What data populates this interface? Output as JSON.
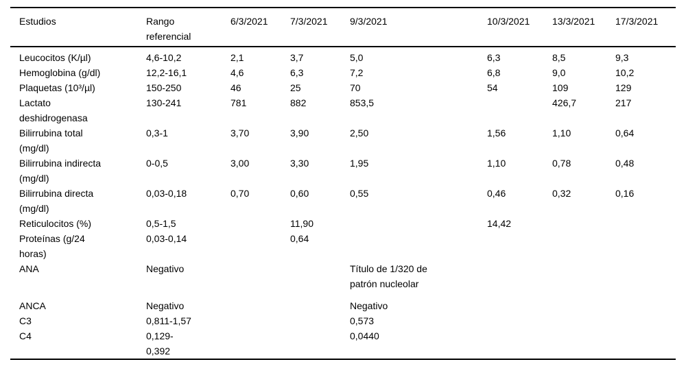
{
  "page": {
    "background_color": "#ffffff",
    "text_color": "#000000",
    "rule_color": "#000000"
  },
  "table": {
    "columns": [
      "Estudios",
      "Rango\nreferencial",
      "6/3/2021",
      "7/3/2021",
      "9/3/2021",
      "10/3/2021",
      "13/3/2021",
      "17/3/2021"
    ],
    "rows": [
      {
        "cells": [
          "Leucocitos (K/µl)",
          "4,6-10,2",
          "2,1",
          "3,7",
          "5,0",
          "6,3",
          "8,5",
          "9,3"
        ],
        "spaced": false
      },
      {
        "cells": [
          "Hemoglobina (g/dl)",
          "12,2-16,1",
          "4,6",
          "6,3",
          "7,2",
          "6,8",
          "9,0",
          "10,2"
        ],
        "spaced": false
      },
      {
        "cells": [
          "Plaquetas (10³/µl)",
          "150-250",
          "46",
          "25",
          "70",
          "54",
          "109",
          "129"
        ],
        "spaced": false
      },
      {
        "cells": [
          "Lactato\ndeshidrogenasa",
          "130-241",
          "781",
          "882",
          "853,5",
          "",
          "426,7",
          "217"
        ],
        "spaced": false
      },
      {
        "cells": [
          "Bilirrubina total\n(mg/dl)",
          "0,3-1",
          "3,70",
          "3,90",
          "2,50",
          "1,56",
          "1,10",
          "0,64"
        ],
        "spaced": false
      },
      {
        "cells": [
          "Bilirrubina indirecta\n(mg/dl)",
          "0-0,5",
          "3,00",
          "3,30",
          "1,95",
          "1,10",
          "0,78",
          "0,48"
        ],
        "spaced": false
      },
      {
        "cells": [
          "Bilirrubina directa\n(mg/dl)",
          "0,03-0,18",
          "0,70",
          "0,60",
          "0,55",
          "0,46",
          "0,32",
          "0,16"
        ],
        "spaced": false
      },
      {
        "cells": [
          "Reticulocitos (%)",
          "0,5-1,5",
          "",
          "11,90",
          "",
          "14,42",
          "",
          ""
        ],
        "spaced": false
      },
      {
        "cells": [
          "Proteínas (g/24\nhoras)",
          "0,03-0,14",
          "",
          "0,64",
          "",
          "",
          "",
          ""
        ],
        "spaced": false
      },
      {
        "cells": [
          "ANA",
          "Negativo",
          "",
          "",
          "Título de 1/320 de\npatrón nucleolar",
          "",
          "",
          ""
        ],
        "spaced": true
      },
      {
        "cells": [
          "ANCA",
          "Negativo",
          "",
          "",
          "Negativo",
          "",
          "",
          ""
        ],
        "spaced": false
      },
      {
        "cells": [
          "C3",
          "0,811-1,57",
          "",
          "",
          "0,573",
          "",
          "",
          ""
        ],
        "spaced": false
      },
      {
        "cells": [
          "C4",
          "0,129-\n0,392",
          "",
          "",
          "0,0440",
          "",
          "",
          ""
        ],
        "spaced": false
      }
    ]
  },
  "chart_data": {
    "type": "table",
    "title": "Estudios de laboratorio por fecha",
    "columns": [
      "Estudios",
      "Rango referencial",
      "6/3/2021",
      "7/3/2021",
      "9/3/2021",
      "10/3/2021",
      "13/3/2021",
      "17/3/2021"
    ],
    "rows": [
      [
        "Leucocitos (K/µl)",
        "4,6-10,2",
        "2,1",
        "3,7",
        "5,0",
        "6,3",
        "8,5",
        "9,3"
      ],
      [
        "Hemoglobina (g/dl)",
        "12,2-16,1",
        "4,6",
        "6,3",
        "7,2",
        "6,8",
        "9,0",
        "10,2"
      ],
      [
        "Plaquetas (10³/µl)",
        "150-250",
        "46",
        "25",
        "70",
        "54",
        "109",
        "129"
      ],
      [
        "Lactato deshidrogenasa",
        "130-241",
        "781",
        "882",
        "853,5",
        "",
        "426,7",
        "217"
      ],
      [
        "Bilirrubina total (mg/dl)",
        "0,3-1",
        "3,70",
        "3,90",
        "2,50",
        "1,56",
        "1,10",
        "0,64"
      ],
      [
        "Bilirrubina indirecta (mg/dl)",
        "0-0,5",
        "3,00",
        "3,30",
        "1,95",
        "1,10",
        "0,78",
        "0,48"
      ],
      [
        "Bilirrubina directa (mg/dl)",
        "0,03-0,18",
        "0,70",
        "0,60",
        "0,55",
        "0,46",
        "0,32",
        "0,16"
      ],
      [
        "Reticulocitos (%)",
        "0,5-1,5",
        "",
        "11,90",
        "",
        "14,42",
        "",
        ""
      ],
      [
        "Proteínas (g/24 horas)",
        "0,03-0,14",
        "",
        "0,64",
        "",
        "",
        "",
        ""
      ],
      [
        "ANA",
        "Negativo",
        "",
        "",
        "Título de 1/320 de patrón nucleolar",
        "",
        "",
        ""
      ],
      [
        "ANCA",
        "Negativo",
        "",
        "",
        "Negativo",
        "",
        "",
        ""
      ],
      [
        "C3",
        "0,811-1,57",
        "",
        "",
        "0,573",
        "",
        "",
        ""
      ],
      [
        "C4",
        "0,129-0,392",
        "",
        "",
        "0,0440",
        "",
        "",
        ""
      ]
    ],
    "layout": {
      "grid": false,
      "header_rule": true,
      "top_rule": true,
      "bottom_rule": true,
      "alignment": "left"
    }
  }
}
